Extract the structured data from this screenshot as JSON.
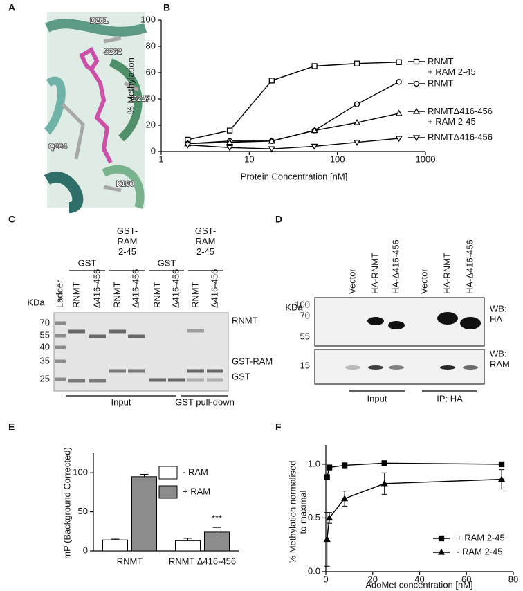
{
  "figure": {
    "panel_labels": [
      "A",
      "B",
      "C",
      "D",
      "E",
      "F"
    ]
  },
  "structure": {
    "residues": [
      "D261",
      "S262",
      "D227",
      "Q284",
      "K180"
    ]
  },
  "gel": {
    "groups": [
      "GST",
      "GST-\nRAM\n2-45",
      "GST",
      "GST-\nRAM\n2-45"
    ],
    "lanes": [
      "Ladder",
      "RNMT",
      "Δ416-456",
      "RNMT",
      "Δ416-456",
      "RNMT",
      "Δ416-456",
      "RNMT",
      "Δ416-456"
    ],
    "unit": "KDa",
    "markers": [
      "70",
      "55",
      "40",
      "35",
      "25"
    ],
    "bands": [
      "RNMT",
      "GST-RAM",
      "GST"
    ],
    "sections": [
      "Input",
      "GST pull-down"
    ]
  },
  "blot": {
    "lanes": [
      "Vector",
      "HA-RNMT",
      "HA-Δ416-456",
      "Vector",
      "HA-RNMT",
      "HA-Δ416-456"
    ],
    "unit": "KDa",
    "markers": [
      "100",
      "70",
      "55",
      "15"
    ],
    "probes": [
      "WB:\nHA",
      "WB:\nRAM"
    ],
    "sections": [
      "Input",
      "IP: HA"
    ]
  },
  "chart_data": [
    {
      "type": "line",
      "xlabel": "Protein Concentration [nM]",
      "ylabel": "% Methylation",
      "x": [
        2,
        6,
        18,
        55,
        167,
        500
      ],
      "xscale": "log",
      "xlim": [
        1,
        1000
      ],
      "xticks": [
        1,
        10,
        100,
        1000
      ],
      "ylim": [
        0,
        100
      ],
      "yticks": [
        0,
        20,
        40,
        60,
        80,
        100
      ],
      "series": [
        {
          "name": "RNMT\n+ RAM 2-45",
          "marker": "square",
          "color": "#000000",
          "values": [
            9,
            16,
            54,
            65,
            67,
            68
          ]
        },
        {
          "name": "RNMT",
          "marker": "circle",
          "color": "#000000",
          "values": [
            6,
            8,
            8,
            16,
            36,
            53
          ]
        },
        {
          "name": "RNMTΔ416-456\n+ RAM 2-45",
          "marker": "triangle-up",
          "color": "#000000",
          "values": [
            6,
            7,
            8,
            16,
            22,
            29
          ]
        },
        {
          "name": "RNMTΔ416-456",
          "marker": "triangle-down",
          "color": "#000000",
          "values": [
            5,
            3,
            2,
            4,
            7,
            10
          ]
        }
      ]
    },
    {
      "type": "bar",
      "ylabel": "mP (Background Corrected)",
      "categories": [
        "RNMT",
        "RNMT Δ416-456"
      ],
      "ylim": [
        0,
        125
      ],
      "yticks": [
        0,
        50,
        100
      ],
      "annotation": "***",
      "series": [
        {
          "name": "- RAM",
          "color": "#ffffff",
          "values": [
            14,
            13
          ],
          "errors": [
            1,
            3
          ]
        },
        {
          "name": "+ RAM",
          "color": "#8c8c8c",
          "values": [
            95,
            24
          ],
          "errors": [
            3,
            6
          ]
        }
      ]
    },
    {
      "type": "line",
      "xlabel": "AdoMet concentration [nM]",
      "ylabel": "% Methylation normalised\nto maximal",
      "x": [
        0.5,
        1.5,
        8,
        25,
        75
      ],
      "xlim": [
        0,
        80
      ],
      "xticks": [
        0,
        20,
        40,
        60,
        80
      ],
      "ylim": [
        0,
        1.18
      ],
      "yticks": [
        {
          "value": 0,
          "label": "0.0"
        },
        {
          "value": 0.5,
          "label": "0.5"
        },
        {
          "value": 1,
          "label": "1.0"
        }
      ],
      "series": [
        {
          "name": "+ RAM 2-45",
          "marker": "square-filled",
          "color": "#000000",
          "values": [
            0.88,
            0.97,
            0.99,
            1.01,
            1.0
          ]
        },
        {
          "name": "- RAM 2-45",
          "marker": "triangle-filled",
          "color": "#000000",
          "values": [
            0.3,
            0.5,
            0.68,
            0.82,
            0.86
          ],
          "errors": [
            0.25,
            0.05,
            0.07,
            0.1,
            0.09
          ]
        }
      ]
    }
  ]
}
